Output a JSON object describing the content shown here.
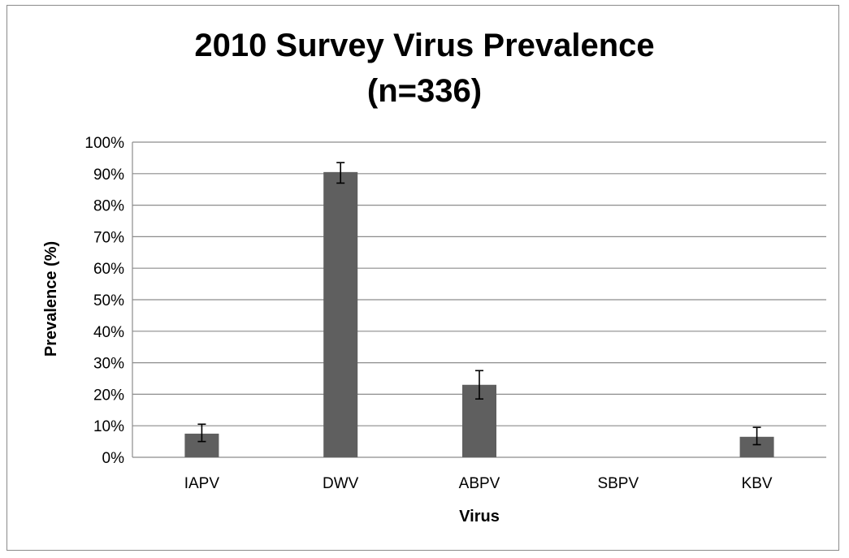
{
  "chart_data": {
    "type": "bar",
    "title_lines": [
      "2010 Survey Virus Prevalence",
      "(n=336)"
    ],
    "categories": [
      "IAPV",
      "DWV",
      "ABPV",
      "SBPV",
      "KBV"
    ],
    "values": [
      7.5,
      90.5,
      23,
      0,
      6.5
    ],
    "error_low": [
      5,
      87,
      18.5,
      0,
      4
    ],
    "error_high": [
      10.5,
      93.5,
      27.5,
      0,
      9.5
    ],
    "xlabel": "Virus",
    "ylabel": "Prevalence (%)",
    "ylim": [
      0,
      100
    ],
    "yticks": [
      0,
      10,
      20,
      30,
      40,
      50,
      60,
      70,
      80,
      90,
      100
    ],
    "ytick_labels": [
      "0%",
      "10%",
      "20%",
      "30%",
      "40%",
      "50%",
      "60%",
      "70%",
      "80%",
      "90%",
      "100%"
    ],
    "grid": true,
    "legend": "none",
    "bar_color": "#5f5f5f",
    "grid_color": "#8c8c8c"
  }
}
